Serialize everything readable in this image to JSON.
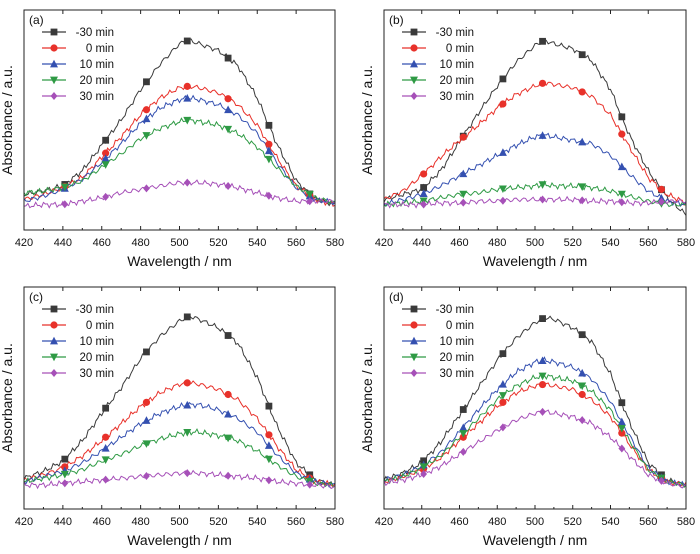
{
  "colors": {
    "-30 min": "#3a3a3a",
    "0 min": "#e8312a",
    "10 min": "#3450b0",
    "20 min": "#2e9a44",
    "30 min": "#a650b8"
  },
  "chart_data": [
    {
      "type": "line",
      "panel_label": "(a)",
      "xlabel": "Wavelength / nm",
      "ylabel": "Absorbance / a.u.",
      "xlim": [
        420,
        580
      ],
      "ylim": [
        0,
        1
      ],
      "xticks": [
        "420",
        "440",
        "460",
        "480",
        "500",
        "520",
        "540",
        "560",
        "580"
      ],
      "legend_position": "top-left",
      "markers": [
        441,
        462,
        483,
        504,
        525,
        546,
        567
      ],
      "series": [
        {
          "name": "-30 min",
          "marker": "square",
          "x": [
            420,
            430,
            440,
            450,
            460,
            470,
            480,
            490,
            500,
            505,
            510,
            520,
            530,
            540,
            550,
            560,
            570,
            580
          ],
          "values": [
            0.08,
            0.1,
            0.13,
            0.22,
            0.37,
            0.52,
            0.7,
            0.85,
            0.97,
            0.99,
            0.97,
            0.93,
            0.84,
            0.65,
            0.38,
            0.16,
            0.05,
            0.02
          ]
        },
        {
          "name": "0 min",
          "marker": "circle",
          "x": [
            420,
            430,
            440,
            450,
            460,
            470,
            480,
            490,
            500,
            505,
            510,
            520,
            530,
            540,
            550,
            560,
            570,
            580
          ],
          "values": [
            0.05,
            0.08,
            0.12,
            0.18,
            0.3,
            0.42,
            0.55,
            0.65,
            0.71,
            0.72,
            0.71,
            0.68,
            0.61,
            0.49,
            0.3,
            0.13,
            0.05,
            0.02
          ]
        },
        {
          "name": "10 min",
          "marker": "triangle-up",
          "x": [
            420,
            430,
            440,
            450,
            460,
            470,
            480,
            490,
            500,
            505,
            510,
            520,
            530,
            540,
            550,
            560,
            570,
            580
          ],
          "values": [
            0.04,
            0.07,
            0.11,
            0.17,
            0.27,
            0.38,
            0.5,
            0.59,
            0.64,
            0.65,
            0.64,
            0.61,
            0.55,
            0.44,
            0.27,
            0.12,
            0.05,
            0.03
          ]
        },
        {
          "name": "20 min",
          "marker": "triangle-down",
          "x": [
            420,
            430,
            440,
            450,
            460,
            470,
            480,
            490,
            500,
            505,
            510,
            520,
            530,
            540,
            550,
            560,
            570,
            580
          ],
          "values": [
            0.09,
            0.1,
            0.12,
            0.16,
            0.24,
            0.32,
            0.41,
            0.47,
            0.51,
            0.52,
            0.51,
            0.49,
            0.44,
            0.36,
            0.24,
            0.13,
            0.06,
            0.03
          ]
        },
        {
          "name": "30 min",
          "marker": "diamond",
          "x": [
            420,
            430,
            440,
            450,
            460,
            470,
            480,
            490,
            500,
            505,
            510,
            520,
            530,
            540,
            550,
            560,
            570,
            580
          ],
          "values": [
            0.01,
            0.02,
            0.02,
            0.04,
            0.06,
            0.09,
            0.11,
            0.13,
            0.15,
            0.15,
            0.15,
            0.14,
            0.12,
            0.09,
            0.06,
            0.04,
            0.04,
            0.04
          ]
        }
      ]
    },
    {
      "type": "line",
      "panel_label": "(b)",
      "xlabel": "Wavelength / nm",
      "ylabel": "Absorbance / a.u.",
      "xlim": [
        420,
        580
      ],
      "ylim": [
        0,
        1
      ],
      "xticks": [
        "420",
        "440",
        "460",
        "480",
        "500",
        "520",
        "540",
        "560",
        "580"
      ],
      "legend_position": "top-left",
      "markers": [
        441,
        462,
        483,
        504,
        525,
        546,
        567
      ],
      "series": [
        {
          "name": "-30 min",
          "marker": "square",
          "x": [
            420,
            430,
            440,
            450,
            460,
            470,
            480,
            490,
            500,
            505,
            510,
            520,
            530,
            540,
            550,
            560,
            570,
            580
          ],
          "values": [
            0.05,
            0.08,
            0.11,
            0.22,
            0.39,
            0.56,
            0.72,
            0.86,
            0.96,
            0.99,
            0.97,
            0.94,
            0.87,
            0.7,
            0.43,
            0.22,
            0.06,
            -0.04
          ]
        },
        {
          "name": "0 min",
          "marker": "circle",
          "x": [
            420,
            430,
            440,
            450,
            460,
            470,
            480,
            490,
            500,
            505,
            510,
            520,
            530,
            540,
            550,
            560,
            570,
            580
          ],
          "values": [
            0.05,
            0.1,
            0.19,
            0.3,
            0.4,
            0.49,
            0.59,
            0.67,
            0.72,
            0.74,
            0.73,
            0.71,
            0.66,
            0.55,
            0.36,
            0.18,
            0.08,
            0.03
          ]
        },
        {
          "name": "10 min",
          "marker": "triangle-up",
          "x": [
            420,
            430,
            440,
            450,
            460,
            470,
            480,
            490,
            500,
            505,
            510,
            520,
            530,
            540,
            550,
            560,
            570,
            580
          ],
          "values": [
            0.02,
            0.05,
            0.08,
            0.13,
            0.19,
            0.25,
            0.31,
            0.37,
            0.42,
            0.43,
            0.42,
            0.4,
            0.38,
            0.31,
            0.2,
            0.1,
            0.04,
            0.02
          ]
        },
        {
          "name": "20 min",
          "marker": "triangle-down",
          "x": [
            420,
            430,
            440,
            450,
            460,
            470,
            480,
            490,
            500,
            505,
            510,
            520,
            530,
            540,
            550,
            560,
            570,
            580
          ],
          "values": [
            0.02,
            0.03,
            0.04,
            0.06,
            0.08,
            0.09,
            0.11,
            0.12,
            0.13,
            0.14,
            0.13,
            0.13,
            0.12,
            0.1,
            0.07,
            0.04,
            0.02,
            0.02
          ]
        },
        {
          "name": "30 min",
          "marker": "diamond",
          "x": [
            420,
            430,
            440,
            450,
            460,
            470,
            480,
            490,
            500,
            505,
            510,
            520,
            530,
            540,
            550,
            560,
            570,
            580
          ],
          "values": [
            0.02,
            0.02,
            0.02,
            0.03,
            0.03,
            0.04,
            0.04,
            0.05,
            0.05,
            0.05,
            0.05,
            0.05,
            0.04,
            0.04,
            0.03,
            0.03,
            0.04,
            0.04
          ]
        }
      ]
    },
    {
      "type": "line",
      "panel_label": "(c)",
      "xlabel": "Wavelength / nm",
      "ylabel": "Absorbance / a.u.",
      "xlim": [
        420,
        580
      ],
      "ylim": [
        0,
        1
      ],
      "xticks": [
        "420",
        "440",
        "460",
        "480",
        "500",
        "520",
        "540",
        "560",
        "580"
      ],
      "legend_position": "top-left",
      "markers": [
        441,
        462,
        483,
        504,
        525,
        546,
        567
      ],
      "series": [
        {
          "name": "-30 min",
          "marker": "square",
          "x": [
            420,
            430,
            440,
            450,
            460,
            470,
            480,
            490,
            500,
            505,
            510,
            520,
            530,
            540,
            550,
            560,
            570,
            580
          ],
          "values": [
            0.05,
            0.09,
            0.15,
            0.27,
            0.43,
            0.58,
            0.75,
            0.88,
            0.97,
            1.0,
            0.98,
            0.93,
            0.84,
            0.64,
            0.36,
            0.14,
            0.04,
            0.01
          ]
        },
        {
          "name": "0 min",
          "marker": "circle",
          "x": [
            420,
            430,
            440,
            450,
            460,
            470,
            480,
            490,
            500,
            505,
            510,
            520,
            530,
            540,
            550,
            560,
            570,
            580
          ],
          "values": [
            0.04,
            0.07,
            0.11,
            0.18,
            0.27,
            0.37,
            0.47,
            0.55,
            0.6,
            0.61,
            0.6,
            0.57,
            0.51,
            0.4,
            0.24,
            0.1,
            0.03,
            0.01
          ]
        },
        {
          "name": "10 min",
          "marker": "triangle-up",
          "x": [
            420,
            430,
            440,
            450,
            460,
            470,
            480,
            490,
            500,
            505,
            510,
            520,
            530,
            540,
            550,
            560,
            570,
            580
          ],
          "values": [
            0.03,
            0.06,
            0.09,
            0.14,
            0.21,
            0.29,
            0.37,
            0.43,
            0.47,
            0.48,
            0.48,
            0.45,
            0.4,
            0.32,
            0.19,
            0.08,
            0.03,
            0.01
          ]
        },
        {
          "name": "20 min",
          "marker": "triangle-down",
          "x": [
            420,
            430,
            440,
            450,
            460,
            470,
            480,
            490,
            500,
            505,
            510,
            520,
            530,
            540,
            550,
            560,
            570,
            580
          ],
          "values": [
            0.03,
            0.05,
            0.07,
            0.1,
            0.15,
            0.19,
            0.24,
            0.28,
            0.31,
            0.32,
            0.32,
            0.3,
            0.27,
            0.21,
            0.13,
            0.06,
            0.02,
            0.01
          ]
        },
        {
          "name": "30 min",
          "marker": "diamond",
          "x": [
            420,
            430,
            440,
            450,
            460,
            470,
            480,
            490,
            500,
            505,
            510,
            520,
            530,
            540,
            550,
            560,
            570,
            580
          ],
          "values": [
            0.01,
            0.01,
            0.02,
            0.03,
            0.04,
            0.05,
            0.06,
            0.07,
            0.08,
            0.08,
            0.08,
            0.07,
            0.06,
            0.05,
            0.03,
            0.02,
            0.01,
            0.0
          ]
        }
      ]
    },
    {
      "type": "line",
      "panel_label": "(d)",
      "xlabel": "Wavelength / nm",
      "ylabel": "Absorbance / a.u.",
      "xlim": [
        420,
        580
      ],
      "ylim": [
        0,
        1
      ],
      "xticks": [
        "420",
        "440",
        "460",
        "480",
        "500",
        "520",
        "540",
        "560",
        "580"
      ],
      "legend_position": "top-left",
      "markers": [
        441,
        462,
        483,
        504,
        525,
        546,
        567
      ],
      "series": [
        {
          "name": "-30 min",
          "marker": "square",
          "x": [
            420,
            430,
            440,
            450,
            460,
            470,
            480,
            490,
            500,
            505,
            510,
            520,
            530,
            540,
            550,
            560,
            570,
            580
          ],
          "values": [
            0.04,
            0.08,
            0.14,
            0.26,
            0.42,
            0.58,
            0.74,
            0.87,
            0.96,
            0.99,
            0.98,
            0.93,
            0.85,
            0.66,
            0.38,
            0.14,
            0.04,
            0.01
          ]
        },
        {
          "name": "0 min",
          "marker": "circle",
          "x": [
            420,
            430,
            440,
            450,
            460,
            470,
            480,
            490,
            500,
            505,
            510,
            520,
            530,
            540,
            550,
            560,
            570,
            580
          ],
          "values": [
            0.03,
            0.06,
            0.1,
            0.17,
            0.27,
            0.37,
            0.47,
            0.55,
            0.59,
            0.6,
            0.59,
            0.57,
            0.51,
            0.41,
            0.25,
            0.1,
            0.03,
            0.01
          ]
        },
        {
          "name": "10 min",
          "marker": "triangle-up",
          "x": [
            420,
            430,
            440,
            450,
            460,
            470,
            480,
            490,
            500,
            505,
            510,
            520,
            530,
            540,
            550,
            560,
            570,
            580
          ],
          "values": [
            0.04,
            0.07,
            0.12,
            0.2,
            0.32,
            0.45,
            0.57,
            0.67,
            0.73,
            0.74,
            0.73,
            0.7,
            0.63,
            0.5,
            0.3,
            0.11,
            0.03,
            0.01
          ]
        },
        {
          "name": "20 min",
          "marker": "triangle-down",
          "x": [
            420,
            430,
            440,
            450,
            460,
            470,
            480,
            490,
            500,
            505,
            510,
            520,
            530,
            540,
            550,
            560,
            570,
            580
          ],
          "values": [
            0.03,
            0.06,
            0.11,
            0.18,
            0.29,
            0.4,
            0.51,
            0.59,
            0.64,
            0.65,
            0.64,
            0.62,
            0.56,
            0.45,
            0.27,
            0.1,
            0.03,
            0.01
          ]
        },
        {
          "name": "30 min",
          "marker": "diamond",
          "x": [
            420,
            430,
            440,
            450,
            460,
            470,
            480,
            490,
            500,
            505,
            510,
            520,
            530,
            540,
            550,
            560,
            570,
            580
          ],
          "values": [
            0.02,
            0.04,
            0.07,
            0.12,
            0.19,
            0.26,
            0.33,
            0.39,
            0.43,
            0.44,
            0.43,
            0.41,
            0.37,
            0.29,
            0.18,
            0.07,
            0.02,
            0.0
          ]
        }
      ]
    }
  ]
}
